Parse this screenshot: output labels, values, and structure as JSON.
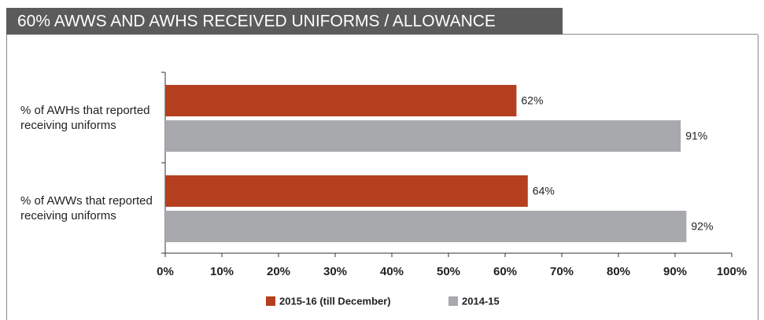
{
  "chart_data": {
    "type": "hbar",
    "title": "60% AWWS AND AWHS RECEIVED UNIFORMS / ALLOWANCE",
    "categories": [
      "% of AWHs that reported receiving uniforms",
      "% of AWWs that reported receiving uniforms"
    ],
    "series": [
      {
        "name": "2015-16 (till December)",
        "color": "#b5401f",
        "values": [
          62,
          64
        ],
        "value_labels": [
          "62%",
          "64%"
        ]
      },
      {
        "name": "2014-15",
        "color": "#a7a9ac",
        "values": [
          91,
          92
        ],
        "value_labels": [
          "91%",
          "92%"
        ]
      }
    ],
    "xlim": [
      0,
      100
    ],
    "xticks": [
      {
        "value": 0,
        "label": "0%"
      },
      {
        "value": 10,
        "label": "10%"
      },
      {
        "value": 20,
        "label": "20%"
      },
      {
        "value": 30,
        "label": "30%"
      },
      {
        "value": 40,
        "label": "40%"
      },
      {
        "value": 50,
        "label": "50%"
      },
      {
        "value": 60,
        "label": "60%"
      },
      {
        "value": 70,
        "label": "70%"
      },
      {
        "value": 80,
        "label": "80%"
      },
      {
        "value": 90,
        "label": "90%"
      },
      {
        "value": 100,
        "label": "100%"
      }
    ],
    "legend": "bottom"
  }
}
